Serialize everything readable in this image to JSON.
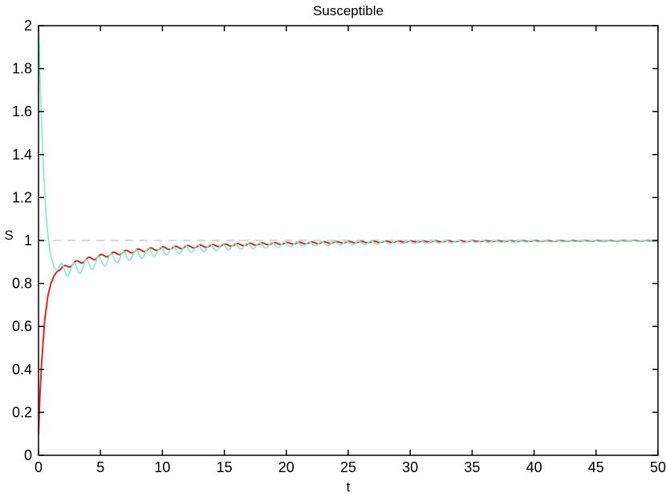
{
  "figure": {
    "background": "#ffffff",
    "axis_color": "#000000",
    "text_color": "#000000"
  },
  "chart_data": {
    "type": "line",
    "title": "Susceptible",
    "xlabel": "t",
    "ylabel": "S",
    "xlim": [
      0,
      50
    ],
    "ylim": [
      0,
      2
    ],
    "grid": false,
    "box": true,
    "legend": "none",
    "xticks": {
      "values": [
        0,
        5,
        10,
        15,
        20,
        25,
        30,
        35,
        40,
        45,
        50
      ],
      "labels": [
        "0",
        "5",
        "10",
        "15",
        "20",
        "25",
        "30",
        "35",
        "40",
        "45",
        "50"
      ]
    },
    "yticks": {
      "values": [
        0,
        0.2,
        0.4,
        0.6,
        0.8,
        1,
        1.2,
        1.4,
        1.6,
        1.8,
        2
      ],
      "labels": [
        "0",
        "0.2",
        "0.4",
        "0.6",
        "0.8",
        "1",
        "1.2",
        "1.4",
        "1.6",
        "1.8",
        "2"
      ]
    },
    "reference_line": {
      "description": "dashed equilibrium line at S = 1",
      "value": 1,
      "color": "#cbcbcb",
      "dash": [
        10,
        8
      ],
      "width": 1.5
    },
    "series": [
      {
        "name": "S trajectory starting below equilibrium",
        "color": "#e8231f",
        "width": 2,
        "initial_value": 0.1,
        "final_value": 0.999,
        "mean_points": [
          [
            0,
            0.1
          ],
          [
            0.1,
            0.26
          ],
          [
            0.25,
            0.43
          ],
          [
            0.5,
            0.63
          ],
          [
            0.75,
            0.74
          ],
          [
            1,
            0.8
          ],
          [
            1.25,
            0.835
          ],
          [
            1.5,
            0.856
          ],
          [
            1.75,
            0.866
          ],
          [
            2,
            0.874
          ],
          [
            2.5,
            0.885
          ],
          [
            3,
            0.895
          ],
          [
            3.5,
            0.904
          ],
          [
            4,
            0.912
          ],
          [
            5,
            0.926
          ],
          [
            6,
            0.937
          ],
          [
            7,
            0.946
          ],
          [
            8,
            0.953
          ],
          [
            9,
            0.958
          ],
          [
            10,
            0.963
          ],
          [
            12,
            0.97
          ],
          [
            15,
            0.978
          ],
          [
            17.5,
            0.983
          ],
          [
            20,
            0.987
          ],
          [
            25,
            0.992
          ],
          [
            30,
            0.995
          ],
          [
            35,
            0.9965
          ],
          [
            40,
            0.9975
          ],
          [
            45,
            0.9982
          ],
          [
            50,
            0.9987
          ]
        ],
        "ripple": {
          "amplitude": 0.0095,
          "decay": 0.045,
          "t_ref": 2,
          "period": 1.0,
          "phase_t": 1.8,
          "ramp": [
            1.4,
            2.4
          ]
        }
      },
      {
        "name": "S trajectory starting above equilibrium",
        "color": "#7df2cd",
        "width": 1.7,
        "initial_value": 2.0,
        "final_value": 0.998,
        "mean_points": [
          [
            0,
            2.0
          ],
          [
            0.2,
            1.62
          ],
          [
            0.4,
            1.33
          ],
          [
            0.6,
            1.13
          ],
          [
            0.8,
            1.0
          ],
          [
            1,
            0.925
          ],
          [
            1.25,
            0.885
          ],
          [
            1.5,
            0.871
          ],
          [
            2,
            0.862
          ],
          [
            2.5,
            0.8625
          ],
          [
            3,
            0.869
          ],
          [
            3.5,
            0.877
          ],
          [
            4,
            0.886
          ],
          [
            5,
            0.901
          ],
          [
            6,
            0.916
          ],
          [
            7,
            0.927
          ],
          [
            8,
            0.936
          ],
          [
            9,
            0.944
          ],
          [
            10,
            0.95
          ],
          [
            12,
            0.96
          ],
          [
            15,
            0.97
          ],
          [
            17.5,
            0.976
          ],
          [
            20,
            0.9815
          ],
          [
            25,
            0.988
          ],
          [
            30,
            0.9925
          ],
          [
            35,
            0.995
          ],
          [
            40,
            0.9965
          ],
          [
            45,
            0.9975
          ],
          [
            50,
            0.998
          ]
        ],
        "ripple": {
          "amplitude": 0.03,
          "decay": 0.055,
          "t_ref": 2,
          "period": 1.0,
          "phase_t": 1.6,
          "ramp": [
            0.9,
            1.9
          ]
        }
      }
    ]
  }
}
